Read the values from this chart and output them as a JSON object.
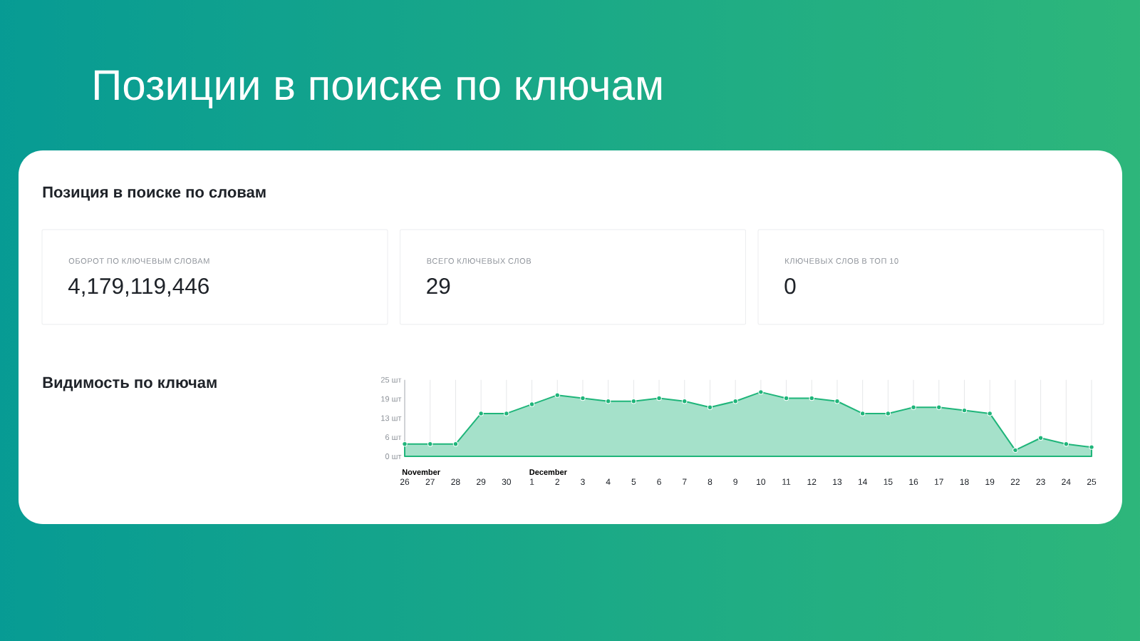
{
  "chart_data": [
    {
      "type": "other",
      "title": "Позиции в поиске по ключам",
      "subtitle": "Позиция в поиске по словам",
      "annotations": [
        "ОБОРОТ ПО КЛЮЧЕВЫМ СЛОВАМ",
        "4,179,119,446",
        "ВСЕГО КЛЮЧЕВЫХ СЛОВ",
        "29",
        "КЛЮЧЕВЫХ СЛОВ В ТОП 10",
        "0",
        "Видимость по ключам"
      ]
    },
    {
      "type": "area",
      "categories": [
        "26",
        "27",
        "28",
        "29",
        "30",
        "1",
        "2",
        "3",
        "4",
        "5",
        "6",
        "7",
        "8",
        "9",
        "10",
        "11",
        "12",
        "13",
        "14",
        "15",
        "16",
        "17",
        "18",
        "19",
        "22",
        "23",
        "24",
        "25"
      ],
      "values": [
        4,
        4,
        4,
        14,
        14,
        17,
        20,
        19,
        18,
        18,
        19,
        18,
        16,
        18,
        21,
        19,
        19,
        18,
        14,
        14,
        16,
        16,
        15,
        14,
        2,
        6,
        4,
        3
      ],
      "color": "#1fb57a",
      "ylim": [
        0,
        25
      ],
      "yticks": [
        {
          "value": 0,
          "label": "0 шт"
        },
        {
          "value": 6.25,
          "label": "6 шт"
        },
        {
          "value": 12.5,
          "label": "13 шт"
        },
        {
          "value": 18.75,
          "label": "19 шт"
        },
        {
          "value": 25,
          "label": "25 шт"
        }
      ],
      "grid": "x",
      "marker": "circle",
      "annotations": [
        "November",
        "December"
      ]
    }
  ]
}
